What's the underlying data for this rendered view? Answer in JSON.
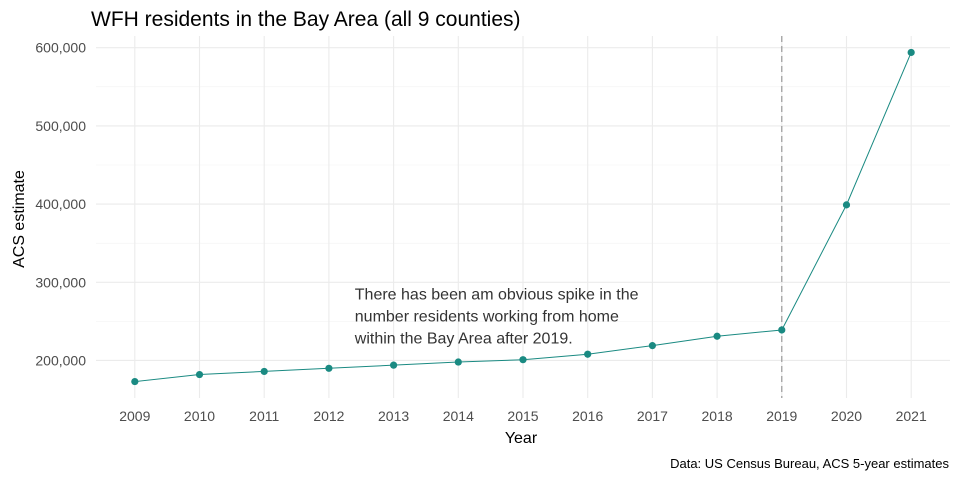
{
  "chart_data": {
    "type": "line",
    "title": "WFH residents in the Bay Area (all 9 counties)",
    "xlabel": "Year",
    "ylabel": "ACS estimate",
    "caption": "Data: US Census Bureau, ACS 5-year estimates",
    "annotation": {
      "lines": [
        "There has been am obvious spike in the",
        "number residents working from home",
        "within the Bay Area after 2019."
      ],
      "x": 2012.4,
      "y": 278000
    },
    "reference_line": {
      "x": 2019,
      "style": "dashed",
      "color": "#999999"
    },
    "x": [
      2009,
      2010,
      2011,
      2012,
      2013,
      2014,
      2015,
      2016,
      2017,
      2018,
      2019,
      2020,
      2021
    ],
    "series": [
      {
        "values": [
          173000,
          182000,
          186000,
          190000,
          194000,
          198000,
          201000,
          208000,
          219000,
          231000,
          239000,
          399000,
          594000
        ],
        "color": "#1a8a82"
      }
    ],
    "x_ticks": [
      "2009",
      "2010",
      "2011",
      "2012",
      "2013",
      "2014",
      "2015",
      "2016",
      "2017",
      "2018",
      "2019",
      "2020",
      "2021"
    ],
    "y_ticks": [
      200000,
      300000,
      400000,
      500000,
      600000
    ],
    "y_tick_labels": [
      "200,000",
      "300,000",
      "400,000",
      "500,000",
      "600,000"
    ],
    "xlim": [
      2008.4,
      2021.6
    ],
    "ylim": [
      152000,
      615000
    ],
    "grid": true,
    "legend": "none"
  }
}
